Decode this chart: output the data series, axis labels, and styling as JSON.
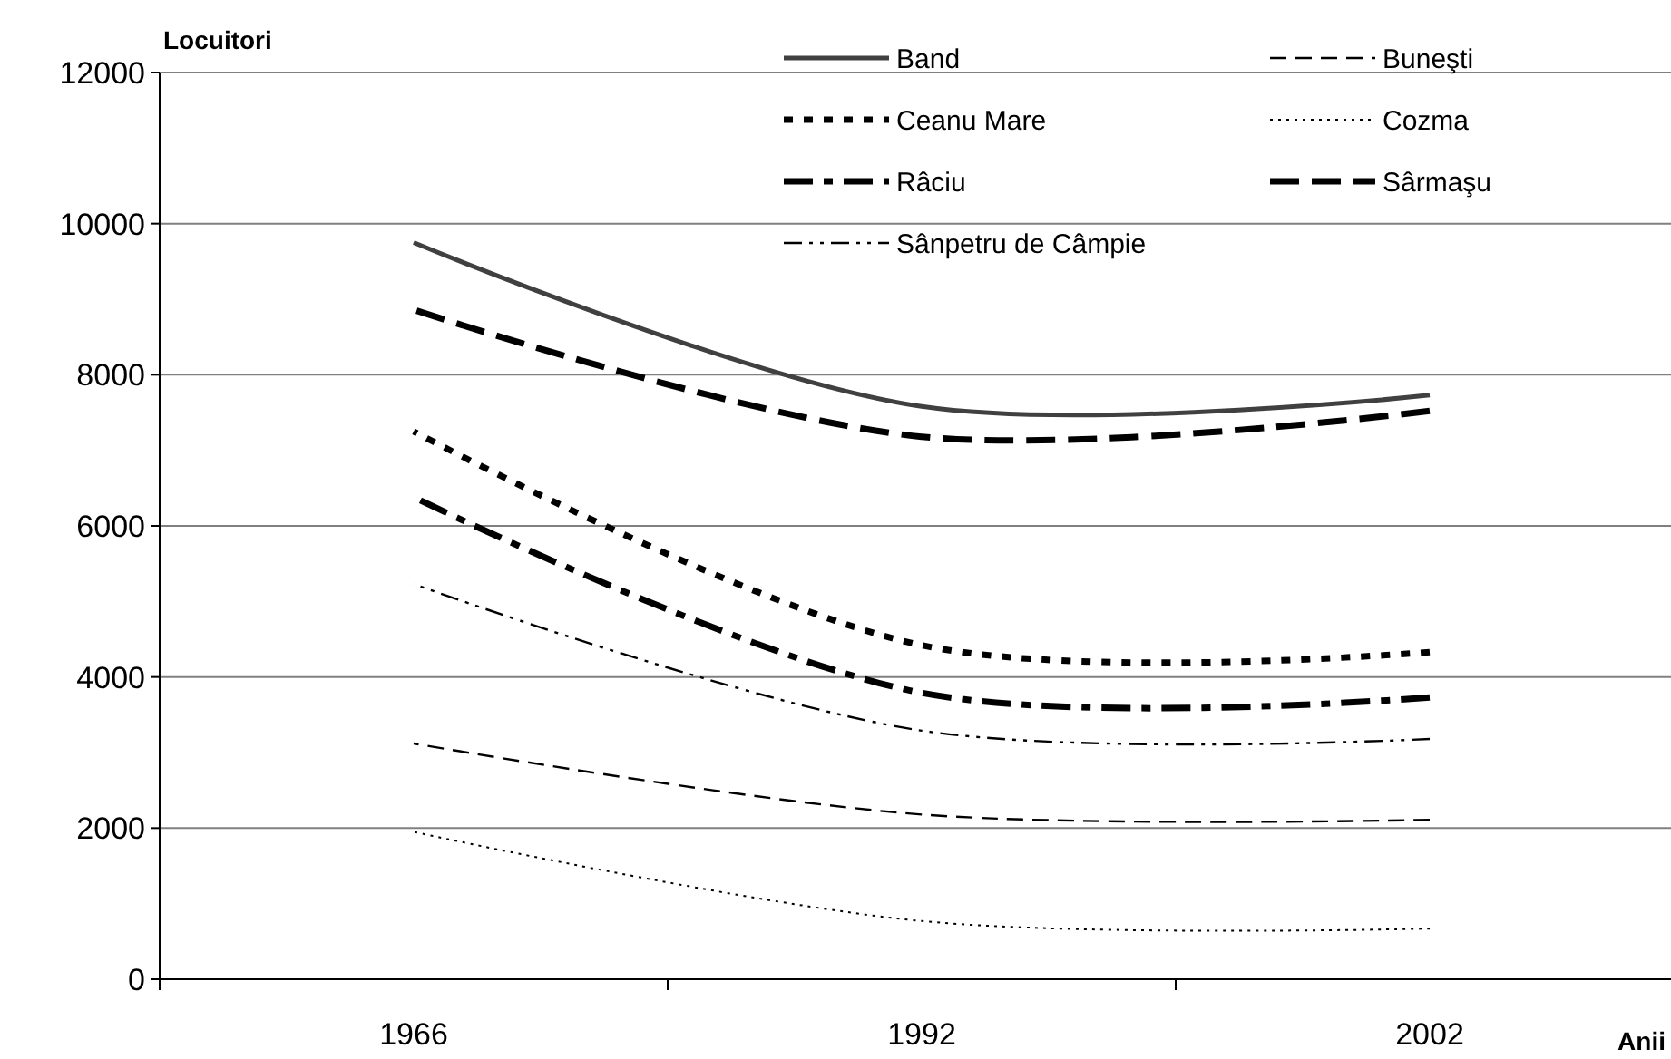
{
  "chart_data": {
    "type": "line",
    "xlabel": "Anii",
    "ylabel": "Locuitori",
    "categories": [
      "1966",
      "1992",
      "2002"
    ],
    "ylim": [
      0,
      12000
    ],
    "yticks": [
      0,
      2000,
      4000,
      6000,
      8000,
      10000,
      12000
    ],
    "grid": "y",
    "legend": "top right",
    "series": [
      {
        "name": "Band",
        "color": "#404040",
        "line_style": "solid",
        "values": [
          9750,
          7580,
          7730
        ]
      },
      {
        "name": "Buneşti",
        "color": "#000000",
        "line_style": "dashed",
        "values": [
          3120,
          2180,
          2110
        ]
      },
      {
        "name": "Ceanu Mare",
        "color": "#000000",
        "line_style": "dotted",
        "values": [
          7250,
          4420,
          4330
        ]
      },
      {
        "name": "Cozma",
        "color": "#000000",
        "line_style": "dotted",
        "values": [
          1950,
          770,
          670
        ]
      },
      {
        "name": "Râciu",
        "color": "#000000",
        "line_style": "dashed",
        "values": [
          6380,
          3790,
          3730
        ]
      },
      {
        "name": "Sârmaşu",
        "color": "#000000",
        "line_style": "dashed",
        "values": [
          8860,
          7180,
          7520
        ]
      },
      {
        "name": "Sânpetru de Câmpie",
        "color": "#000000",
        "line_style": "dashed",
        "values": [
          5230,
          3290,
          3180
        ]
      }
    ]
  }
}
